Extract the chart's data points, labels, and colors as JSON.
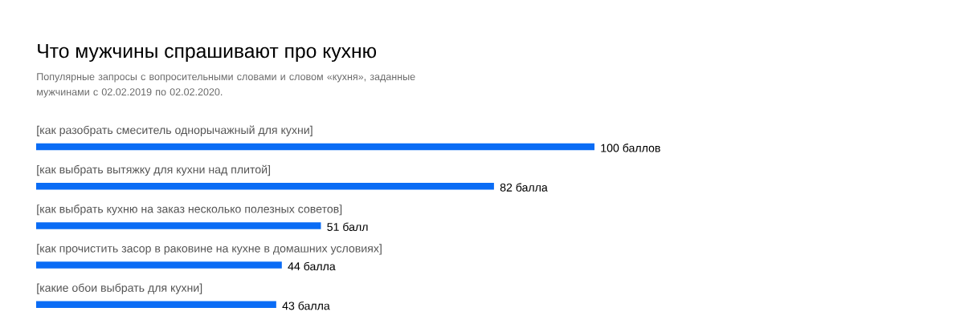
{
  "chart_data": {
    "type": "bar",
    "orientation": "horizontal",
    "title": "Что мужчины спрашивают про кухню",
    "subtitle": "Популярные запросы с вопросительными словами и словом «кухня», заданные мужчинами с 02.02.2019 по 02.02.2020.",
    "categories": [
      "[как разобрать смеситель однорычажный для кухни]",
      "[как выбрать вытяжку для кухни над плитой]",
      "[как выбрать кухню на заказ несколько полезных советов]",
      "[как прочистить засор в раковине на кухне в домашних условиях]",
      "[какие обои выбрать для кухни]"
    ],
    "values": [
      100,
      82,
      51,
      44,
      43
    ],
    "value_labels": [
      "100 баллов",
      "82 балла",
      "51 балл",
      "44 балла",
      "43 балла"
    ],
    "color": "#0a6cf5"
  }
}
